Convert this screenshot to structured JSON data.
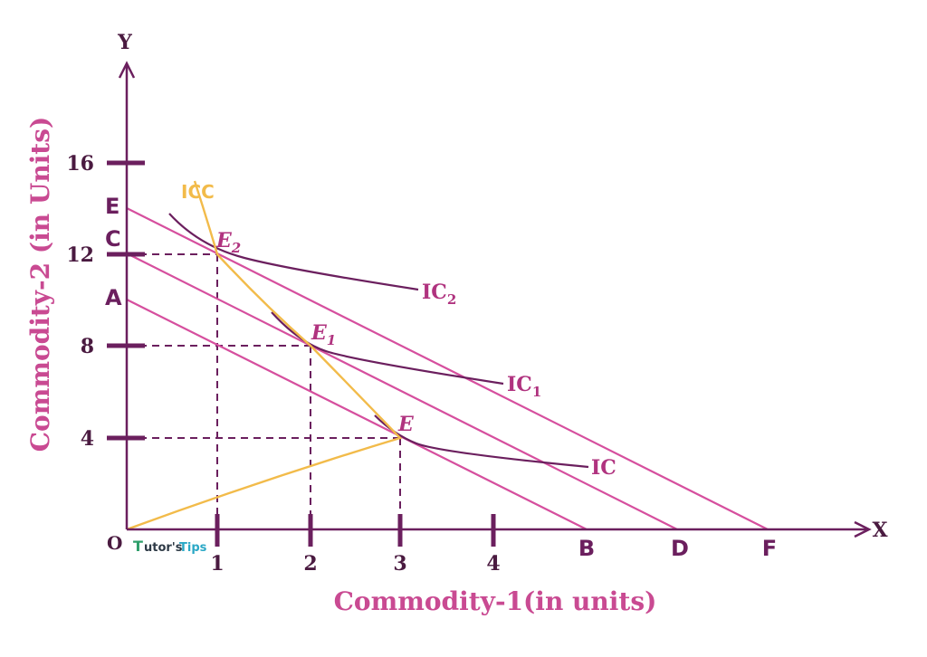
{
  "colors": {
    "axis": "#6B1F5E",
    "budget": "#D64F9E",
    "curve": "#6B1F5E",
    "icc": "#F2BB4A",
    "label_pink": "#C94A92",
    "point_label": "#B0337F",
    "watermark_green": "#2E9E6A",
    "watermark_teal": "#2AA8C6"
  },
  "axes": {
    "x_name": "X",
    "y_name": "Y",
    "x_title": "Commodity-1(in units)",
    "y_title": "Commodity-2 (in Units)",
    "origin_label": "O",
    "x_ticks": [
      "1",
      "2",
      "3",
      "4"
    ],
    "y_ticks": [
      "4",
      "8",
      "12",
      "16"
    ]
  },
  "intercepts": {
    "y": [
      {
        "label": "A",
        "value": 10
      },
      {
        "label": "C",
        "value": 12
      },
      {
        "label": "E",
        "value": 14
      }
    ],
    "x": [
      {
        "label": "B",
        "value": 5
      },
      {
        "label": "D",
        "value": 6
      },
      {
        "label": "F",
        "value": 7
      }
    ]
  },
  "equilibria": [
    {
      "name": "E",
      "sub": "",
      "x": 3,
      "y": 4
    },
    {
      "name": "E",
      "sub": "1",
      "x": 2,
      "y": 8
    },
    {
      "name": "E",
      "sub": "2",
      "x": 1,
      "y": 12
    }
  ],
  "curves": [
    {
      "label": "IC",
      "sub": ""
    },
    {
      "label": "IC",
      "sub": "1"
    },
    {
      "label": "IC",
      "sub": "2"
    }
  ],
  "icc_label": "ICC",
  "watermark": {
    "part1": "utor's",
    "part2": "Tips",
    "initial": "T"
  }
}
